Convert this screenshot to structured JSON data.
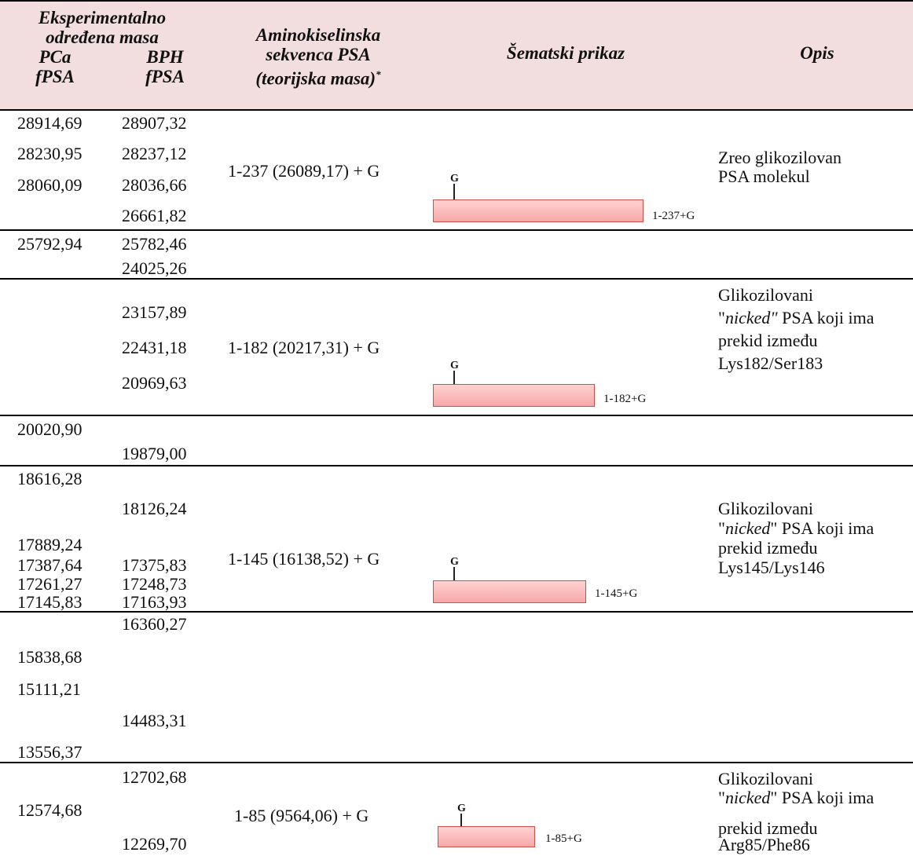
{
  "header": {
    "exp_line1": "Eksperimentalno",
    "exp_line2": "određena masa",
    "pca_line1": "PCa",
    "pca_line2": "fPSA",
    "bph_line1": "BPH",
    "bph_line2": "fPSA",
    "seq_line1": "Aminokiselinska",
    "seq_line2": "sekvenca PSA",
    "seq_line3": "(teorijska masa)",
    "seq_sup": "*",
    "scheme": "Šematski prikaz",
    "desc": "Opis"
  },
  "rows": {
    "r1": {
      "pca": [
        "28914,69",
        "28230,95",
        "28060,09"
      ],
      "bph": [
        "28907,32",
        "28237,12",
        "28036,66",
        "26661,82"
      ],
      "seq": "1-237 (26089,17) + G",
      "glyph": "G",
      "bar_label": "1-237+G",
      "desc": [
        "Zreo glikozilovan",
        "PSA molekul"
      ]
    },
    "r2": {
      "pca": [
        "25792,94"
      ],
      "bph": [
        "25782,46",
        "24025,26"
      ]
    },
    "r3": {
      "bph": [
        "23157,89",
        "22431,18",
        "20969,63"
      ],
      "seq": "1-182 (20217,31) + G",
      "glyph": "G",
      "bar_label": "1-182+G",
      "desc": [
        "Glikozilovani",
        "\"",
        "nicked\"",
        " PSA koji ima",
        "prekid između",
        "Lys182/Ser183"
      ]
    },
    "r4": {
      "pca": [
        "20020,90"
      ],
      "bph": [
        "19879,00"
      ]
    },
    "r5": {
      "pca": [
        "18616,28",
        "17889,24",
        "17387,64",
        "17261,27",
        "17145,83"
      ],
      "bph": [
        "18126,24",
        "17375,83",
        "17248,73",
        "17163,93"
      ],
      "seq": "1-145 (16138,52) + G",
      "glyph": "G",
      "bar_label": "1-145+G",
      "desc": [
        "Glikozilovani",
        "\"",
        "nicked",
        "\" PSA koji ima",
        "prekid između",
        "Lys145/Lys146"
      ]
    },
    "r6": {
      "pca": [
        "15838,68",
        "15111,21",
        "13556,37"
      ],
      "bph": [
        "16360,27",
        "14483,31"
      ]
    },
    "r7": {
      "pca": [
        "12574,68"
      ],
      "bph": [
        "12702,68",
        "12269,70"
      ],
      "seq": "1-85 (9564,06) + G",
      "glyph": "G",
      "bar_label": "1-85+G",
      "desc": [
        "Glikozilovani",
        "\"",
        "nicked",
        "\" PSA koji ima",
        "prekid između",
        "Arg85/Phe86"
      ]
    }
  }
}
